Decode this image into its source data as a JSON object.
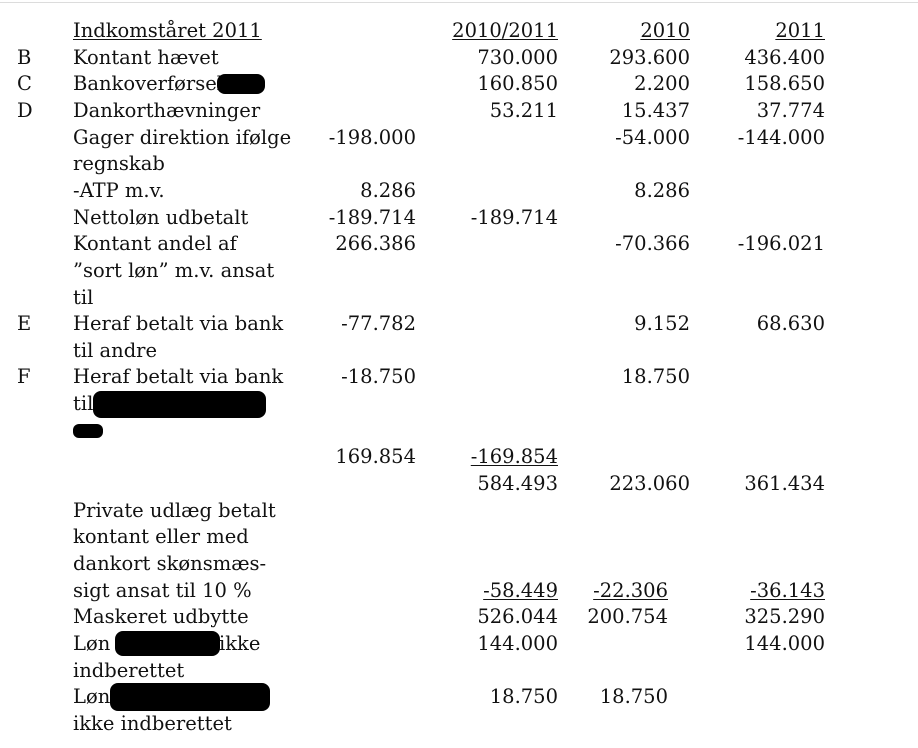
{
  "header": {
    "title": "Indkomståret 2011",
    "col_2010_2011": "2010/2011",
    "col_2010": "2010",
    "col_2011": "2011"
  },
  "rows": {
    "b": {
      "letter": "B",
      "label": "Kontant hævet",
      "v1011": "730.000",
      "v10": "293.600",
      "v11": "436.400"
    },
    "c": {
      "letter": "C",
      "label": "Bankoverførsel",
      "v1011": "160.850",
      "v10": "2.200",
      "v11": "158.650"
    },
    "d": {
      "letter": "D",
      "label": "Dankorthævninger",
      "v1011": "53.211",
      "v10": "15.437",
      "v11": "37.774"
    },
    "gager": {
      "label1": "Gager direktion ifølge",
      "label2": "regnskab",
      "amount": "-198.000",
      "v10": "-54.000",
      "v11": "-144.000"
    },
    "atp": {
      "label": "-ATP m.v.",
      "amount": "8.286",
      "v10": "8.286"
    },
    "netto": {
      "label": "Nettoløn udbetalt",
      "amount": "-189.714",
      "v1011": "-189.714"
    },
    "kontant": {
      "label1": "Kontant andel af",
      "label2": "”sort løn” m.v. ansat",
      "label3": "til",
      "amount": "266.386",
      "v10": "-70.366",
      "v11": "-196.021"
    },
    "e": {
      "letter": "E",
      "label1": "Heraf betalt via bank",
      "label2": "til andre",
      "amount": "-77.782",
      "v10": "9.152",
      "v11": "68.630"
    },
    "f": {
      "letter": "F",
      "label1": "Heraf betalt via bank",
      "label2": "til",
      "amount": "-18.750",
      "v10": "18.750"
    },
    "sum": {
      "amount": "169.854",
      "v1011": "-169.854"
    },
    "total": {
      "v1011": "584.493",
      "v10": "223.060",
      "v11": "361.434"
    },
    "private": {
      "label1": "Private udlæg betalt",
      "label2": "kontant eller med",
      "label3": "dankort skønsmæs-",
      "label4": "sigt ansat til 10 %",
      "v1011": "-58.449",
      "v10": "-22.306",
      "v11": "-36.143"
    },
    "masked": {
      "label": "Maskeret udbytte",
      "v1011": "526.044",
      "v10": "200.754",
      "v11": "325.290"
    },
    "lon1": {
      "label1a": "Løn",
      "label1b": "ikke",
      "label2": "indberettet",
      "v1011": "144.000",
      "v11": "144.000"
    },
    "lon2": {
      "label1": "Løn",
      "label2": "ikke indberettet",
      "v1011": "18.750",
      "v10": "18.750"
    }
  }
}
